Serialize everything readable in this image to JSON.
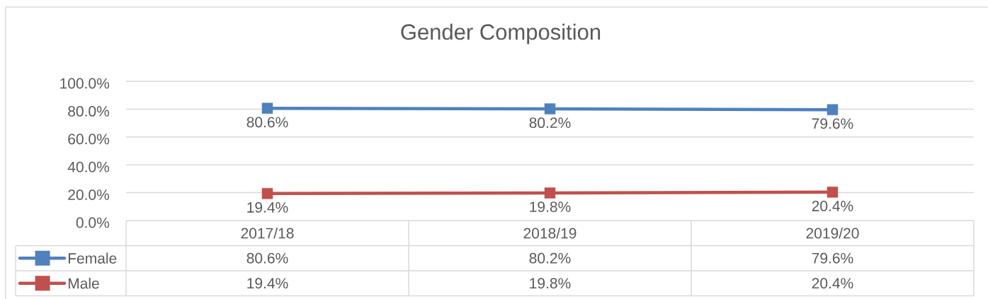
{
  "chart_data": {
    "type": "line",
    "title": "Gender Composition",
    "categories": [
      "2017/18",
      "2018/19",
      "2019/20"
    ],
    "series": [
      {
        "name": "Female",
        "color": "#4f81bd",
        "values": [
          80.6,
          80.2,
          79.6
        ],
        "value_labels": [
          "80.6%",
          "80.2%",
          "79.6%"
        ]
      },
      {
        "name": "Male",
        "color": "#c0504d",
        "values": [
          19.4,
          19.8,
          20.4
        ],
        "value_labels": [
          "19.4%",
          "19.8%",
          "20.4%"
        ]
      }
    ],
    "ylim": [
      0,
      100
    ],
    "yticks": [
      {
        "value": 0,
        "label": "0.0%"
      },
      {
        "value": 20,
        "label": "20.0%"
      },
      {
        "value": 40,
        "label": "40.0%"
      },
      {
        "value": 60,
        "label": "60.0%"
      },
      {
        "value": 80,
        "label": "80.0%"
      },
      {
        "value": 100,
        "label": "100.0%"
      }
    ],
    "grid": "y",
    "legend": "bottom left",
    "marker": "square",
    "line_style": "solid"
  }
}
